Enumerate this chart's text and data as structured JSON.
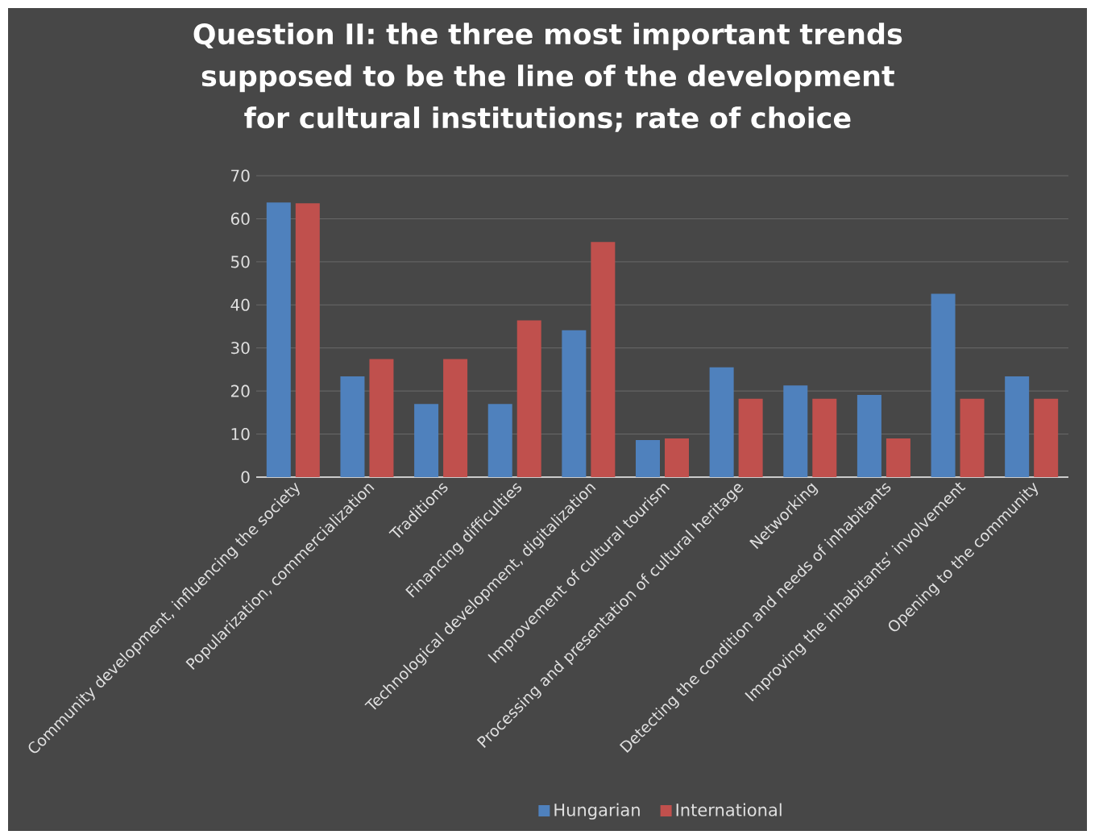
{
  "chart_data": {
    "type": "bar",
    "title": "Question II: the three most important trends supposed to be the line of the development for cultural institutions; rate of choice",
    "categories": [
      "Community development, influencing the society",
      "Popularization, commercialization",
      "Traditions",
      "Financing difficulties",
      "Technological development, digitalization",
      "Improvement of  cultural tourism",
      "Processing and presentation of cultural heritage",
      "Networking",
      "Detecting the condition and needs of inhabitants",
      "Improving the inhabitants’ involvement",
      "Opening to the community"
    ],
    "series": [
      {
        "name": "Hungarian",
        "color": "#4f81bd",
        "values": [
          63.8,
          23.4,
          17.0,
          17.0,
          34.1,
          8.6,
          25.5,
          21.3,
          19.1,
          42.6,
          23.4
        ]
      },
      {
        "name": "International",
        "color": "#c0504d",
        "values": [
          63.6,
          27.4,
          27.4,
          36.4,
          54.6,
          9.0,
          18.2,
          18.2,
          9.0,
          18.2,
          18.2
        ]
      }
    ],
    "ylim": [
      0,
      70
    ],
    "yticks": [
      0,
      10,
      20,
      30,
      40,
      50,
      60,
      70
    ],
    "grid": "y",
    "legend": "bottom"
  }
}
